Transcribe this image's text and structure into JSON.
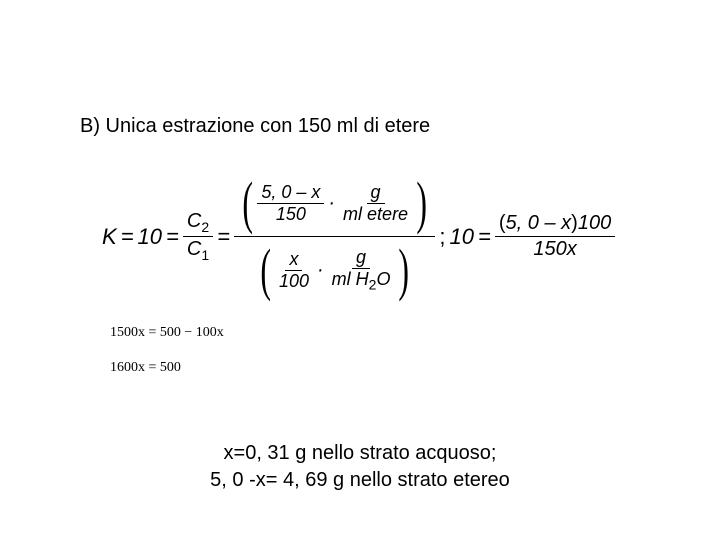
{
  "title": "B) Unica estrazione con 150 ml di etere",
  "eq": {
    "Klabel": "K",
    "eq": "=",
    "ten": "10",
    "C2": "C",
    "C2sub": "2",
    "C1": "C",
    "C1sub": "1",
    "num_expr": "5, 0 – x",
    "num_den": "150",
    "g": "g",
    "ml_etere": "ml etere",
    "x": "x",
    "den_100": "100",
    "ml_h2o": "ml H",
    "h2o_sub": "2",
    "O": "O",
    "semi": ";",
    "ten2": "10",
    "rhs_num_l": "(",
    "rhs_num_expr": "5, 0 – x",
    "rhs_num_r": ")",
    "rhs_num_100": "100",
    "rhs_den": "150x"
  },
  "step1": "1500x = 500 − 100x",
  "step2": "1600x = 500",
  "solution_l1": "x=0, 31 g nello strato acquoso;",
  "solution_l2": "5, 0 -x= 4, 69 g nello strato etereo",
  "colors": {
    "text": "#000000",
    "background": "#ffffff"
  }
}
